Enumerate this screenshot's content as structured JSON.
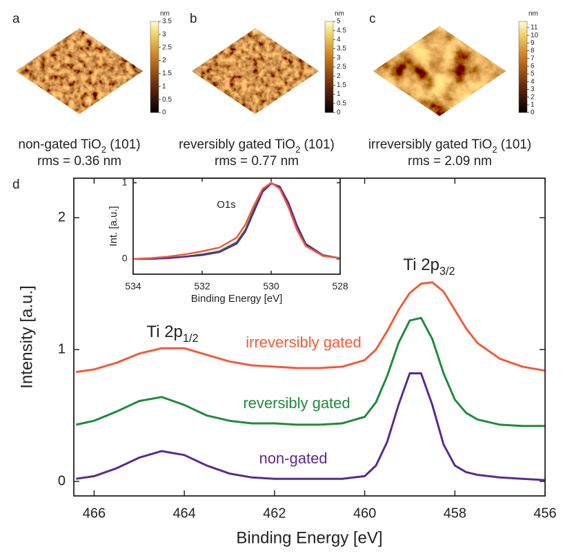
{
  "panels": [
    {
      "label": "a",
      "caption": {
        "text": "non-gated TiO",
        "sub": "2",
        "tail": " (101)"
      },
      "rms": "rms = 0.36 nm",
      "colorbar": {
        "unit": "nm",
        "lim": [
          0,
          3.5
        ],
        "ticks": [
          0,
          0.5,
          1,
          1.5,
          2,
          2.5,
          3,
          3.5
        ]
      }
    },
    {
      "label": "b",
      "caption": {
        "text": "reversibly gated TiO",
        "sub": "2",
        "tail": " (101)"
      },
      "rms": "rms = 0.77 nm",
      "colorbar": {
        "unit": "nm",
        "lim": [
          0,
          5
        ],
        "ticks": [
          0,
          0.5,
          1,
          1.5,
          2,
          2.5,
          3,
          3.5,
          4,
          4.5,
          5
        ]
      }
    },
    {
      "label": "c",
      "caption": {
        "text": "irreversibly gated TiO",
        "sub": "2",
        "tail": " (101)"
      },
      "rms": "rms = 2.09 nm",
      "colorbar": {
        "unit": "nm",
        "lim": [
          0,
          11.8
        ],
        "ticks": [
          0,
          1,
          2,
          3,
          4,
          5,
          6,
          7,
          8,
          9,
          10,
          11
        ]
      }
    }
  ],
  "chart_data": [
    {
      "type": "line",
      "panel_label": "d",
      "xlabel": "Binding Energy [eV]",
      "ylabel": "Intensity [a.u.]",
      "x": [
        466.4,
        466,
        465.5,
        465,
        464.5,
        464,
        463.5,
        463,
        462.5,
        462,
        461.5,
        461,
        460.5,
        460,
        459.75,
        459.5,
        459.25,
        459,
        458.75,
        458.5,
        458.25,
        458,
        457.75,
        457.5,
        457,
        456.5,
        456
      ],
      "xlim": [
        466.45,
        456
      ],
      "xticks": [
        466,
        464,
        462,
        460,
        458,
        456
      ],
      "ylim": [
        -0.11,
        2.3
      ],
      "yticks": [
        0,
        1,
        2
      ],
      "series": [
        {
          "name": "irreversibly gated",
          "color": "#f25a3a",
          "values": [
            0.83,
            0.85,
            0.9,
            0.97,
            1.01,
            1.01,
            0.96,
            0.91,
            0.88,
            0.87,
            0.86,
            0.86,
            0.87,
            0.92,
            1.0,
            1.14,
            1.3,
            1.43,
            1.5,
            1.51,
            1.44,
            1.3,
            1.16,
            1.05,
            0.93,
            0.87,
            0.84
          ]
        },
        {
          "name": "reversibly gated",
          "color": "#1f8a3c",
          "values": [
            0.43,
            0.46,
            0.53,
            0.61,
            0.64,
            0.58,
            0.5,
            0.46,
            0.44,
            0.44,
            0.43,
            0.43,
            0.44,
            0.49,
            0.6,
            0.8,
            1.05,
            1.22,
            1.24,
            1.08,
            0.82,
            0.62,
            0.52,
            0.47,
            0.43,
            0.42,
            0.42
          ]
        },
        {
          "name": "non-gated",
          "color": "#5a2a8e",
          "values": [
            0.02,
            0.04,
            0.1,
            0.18,
            0.23,
            0.2,
            0.12,
            0.06,
            0.03,
            0.02,
            0.02,
            0.02,
            0.02,
            0.04,
            0.12,
            0.3,
            0.58,
            0.82,
            0.82,
            0.58,
            0.28,
            0.12,
            0.07,
            0.05,
            0.03,
            0.02,
            0.01
          ]
        }
      ],
      "annotations": [
        {
          "text": "Ti 2p",
          "sub": "1/2"
        },
        {
          "text": "Ti 2p",
          "sub": "3/2"
        }
      ]
    },
    {
      "type": "line",
      "title": "O1s",
      "xlabel": "Binding Energy [eV]",
      "ylabel": "Int. [a.u.]",
      "x": [
        534,
        533.5,
        533,
        532.5,
        532,
        531.5,
        531,
        530.75,
        530.5,
        530.25,
        530,
        529.75,
        529.5,
        529.25,
        529,
        528.5,
        528
      ],
      "xlim": [
        534,
        528
      ],
      "xticks": [
        534,
        532,
        530,
        528
      ],
      "ylim": [
        -0.2,
        1.06
      ],
      "yticks": [
        0,
        1
      ],
      "series": [
        {
          "color": "#1f8a3c",
          "values": [
            0,
            0,
            0.01,
            0.03,
            0.06,
            0.1,
            0.22,
            0.38,
            0.65,
            0.9,
            1.0,
            0.93,
            0.7,
            0.4,
            0.18,
            0.04,
            0.01
          ]
        },
        {
          "color": "#5a2a8e",
          "values": [
            0,
            0,
            0.01,
            0.03,
            0.05,
            0.09,
            0.2,
            0.36,
            0.62,
            0.88,
            0.99,
            0.95,
            0.74,
            0.44,
            0.2,
            0.05,
            0.01
          ]
        },
        {
          "color": "#f25a3a",
          "values": [
            0,
            0.01,
            0.03,
            0.06,
            0.1,
            0.15,
            0.28,
            0.45,
            0.7,
            0.92,
            1.0,
            0.92,
            0.68,
            0.38,
            0.17,
            0.04,
            0.01
          ]
        }
      ]
    }
  ]
}
